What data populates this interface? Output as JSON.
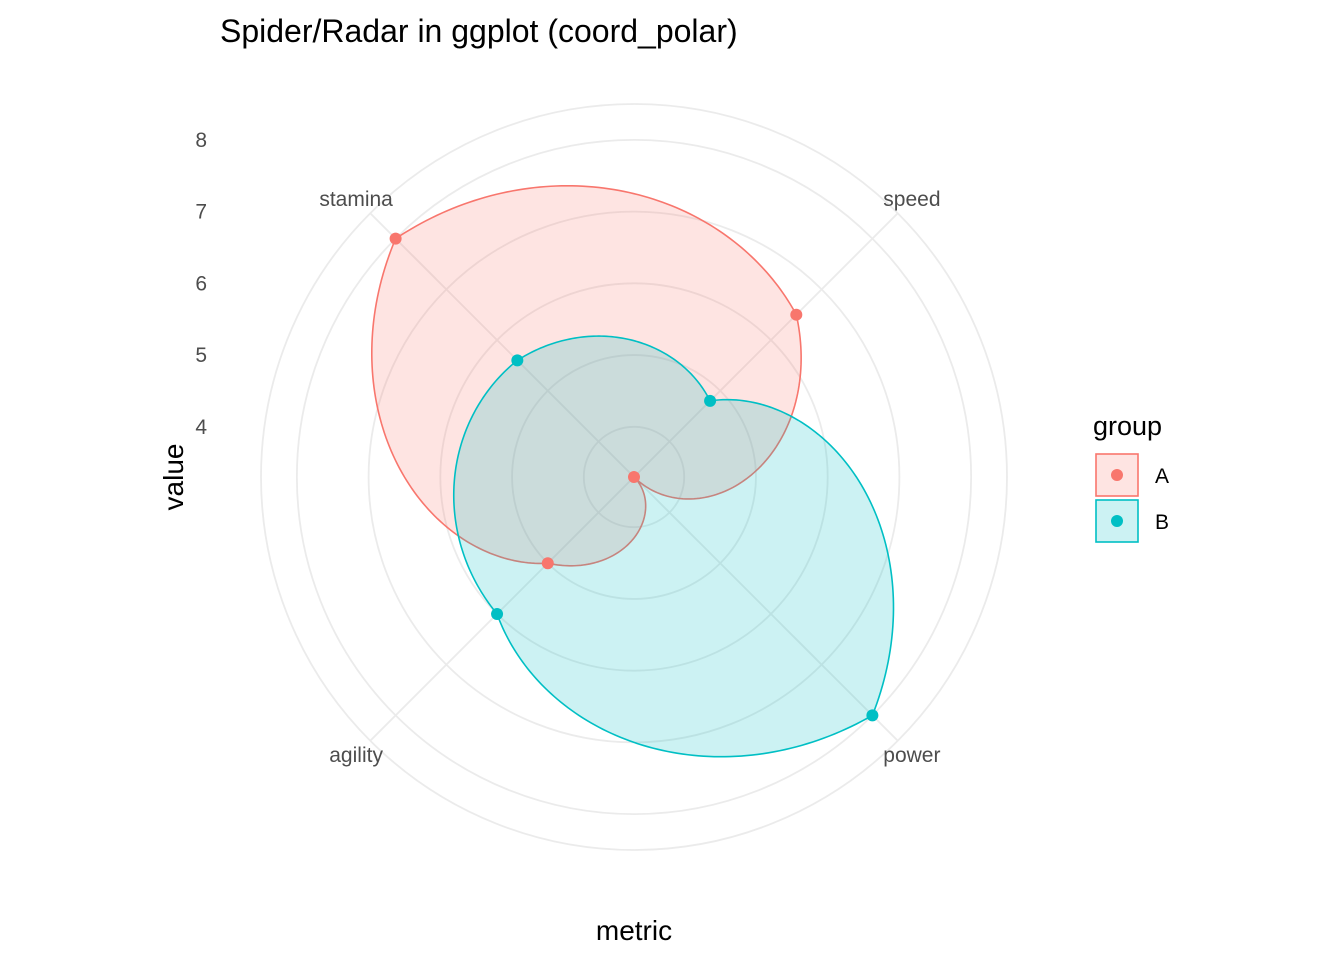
{
  "chart_data": {
    "type": "radar",
    "title": "Spider/Radar in ggplot (coord_polar)",
    "xlabel": "metric",
    "ylabel": "value",
    "categories": [
      "speed",
      "power",
      "agility",
      "stamina"
    ],
    "yticks": [
      4,
      5,
      6,
      7,
      8
    ],
    "ylim": [
      3.3,
      8.5
    ],
    "grid": true,
    "legend": {
      "title": "group",
      "position": "right"
    },
    "series": [
      {
        "name": "A",
        "color": "#F8766D",
        "values": [
          6.5,
          3.3,
          5.0,
          8.0
        ]
      },
      {
        "name": "B",
        "color": "#00BFC4",
        "values": [
          4.8,
          8.0,
          6.0,
          5.6
        ]
      }
    ]
  }
}
